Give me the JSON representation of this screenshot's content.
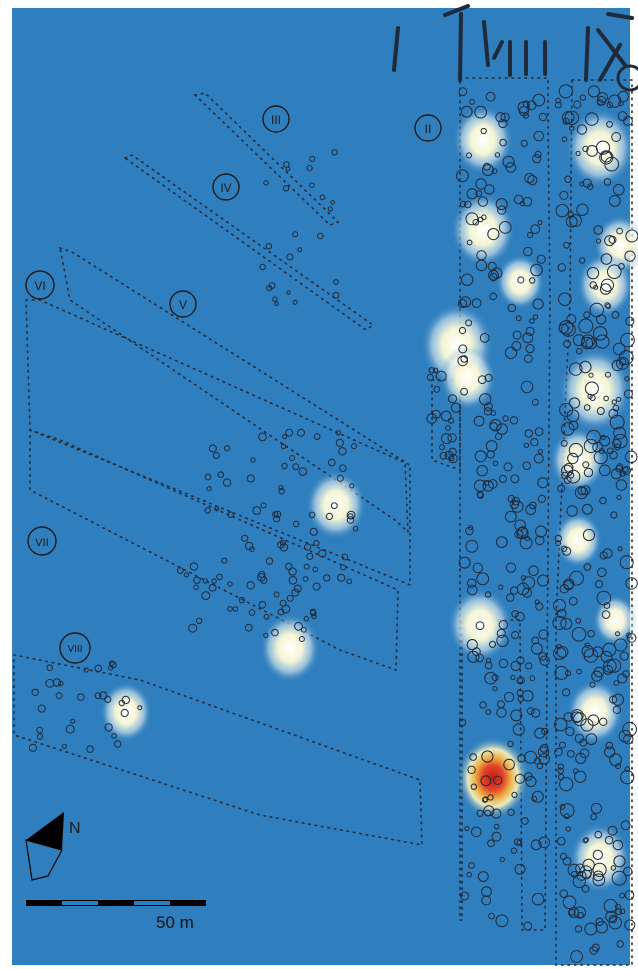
{
  "map": {
    "background_color": "#2f7fbe",
    "feature_outline_color": "#1f2a3a",
    "heat_colors": [
      "#ffffff",
      "#fff7b0",
      "#f6a33a",
      "#d7261e"
    ]
  },
  "row_labels": [
    {
      "id": "iii",
      "text": "III"
    },
    {
      "id": "ii",
      "text": "II"
    },
    {
      "id": "iv",
      "text": "IV"
    },
    {
      "id": "vi",
      "text": "VI"
    },
    {
      "id": "v",
      "text": "V"
    },
    {
      "id": "vii",
      "text": "VII"
    },
    {
      "id": "viii",
      "text": "VIII"
    }
  ],
  "north_arrow": {
    "label": "N",
    "icon": "north-arrow-icon"
  },
  "scale_bar": {
    "label": "50 m",
    "segments": 5,
    "icon": "scale-bar-icon"
  }
}
